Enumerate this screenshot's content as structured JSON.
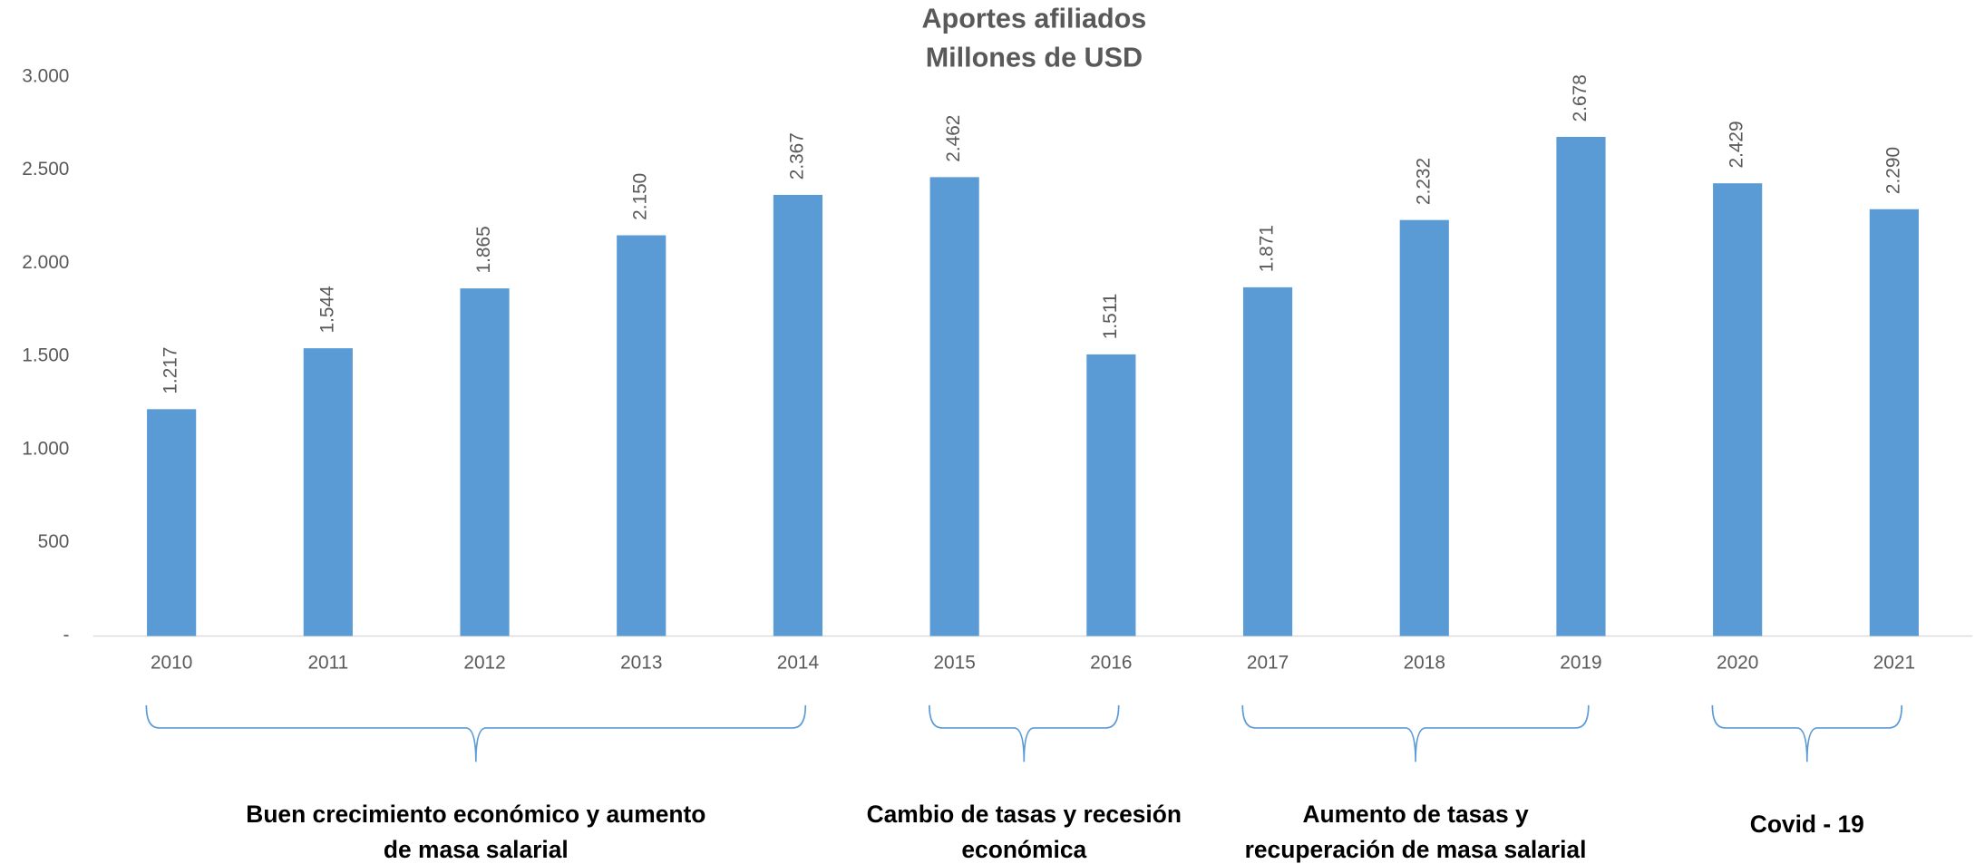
{
  "chart_data": {
    "type": "bar",
    "title": "Aportes afiliados",
    "subtitle": "Millones de USD",
    "categories": [
      "2010",
      "2011",
      "2012",
      "2013",
      "2014",
      "2015",
      "2016",
      "2017",
      "2018",
      "2019",
      "2020",
      "2021"
    ],
    "values": [
      1217,
      1544,
      1865,
      2150,
      2367,
      2462,
      1511,
      1871,
      2232,
      2678,
      2429,
      2290
    ],
    "value_labels": [
      "1.217",
      "1.544",
      "1.865",
      "2.150",
      "2.367",
      "2.462",
      "1.511",
      "1.871",
      "2.232",
      "2.678",
      "2.429",
      "2.290"
    ],
    "color": "#5b9bd5",
    "ylim": [
      0,
      3000
    ],
    "yticks": [
      {
        "value": 0,
        "label": "-"
      },
      500,
      {
        "value": 1000,
        "label": "1.000"
      },
      {
        "value": 1500,
        "label": "1.500"
      },
      {
        "value": 2000,
        "label": "2.000"
      },
      {
        "value": 2500,
        "label": "2.500"
      },
      {
        "value": 3000,
        "label": "3.000"
      }
    ],
    "grid": false,
    "annotations": [
      {
        "lines": [
          "Buen crecimiento económico y aumento",
          "de masa salarial"
        ],
        "from": "2010",
        "to": "2014"
      },
      {
        "lines": [
          "Cambio de tasas y recesión",
          "económica"
        ],
        "from": "2015",
        "to": "2016"
      },
      {
        "lines": [
          "Aumento de tasas y",
          "recuperación de masa salarial"
        ],
        "from": "2017",
        "to": "2019"
      },
      {
        "lines": [
          "Covid - 19"
        ],
        "from": "2020",
        "to": "2021"
      }
    ]
  }
}
